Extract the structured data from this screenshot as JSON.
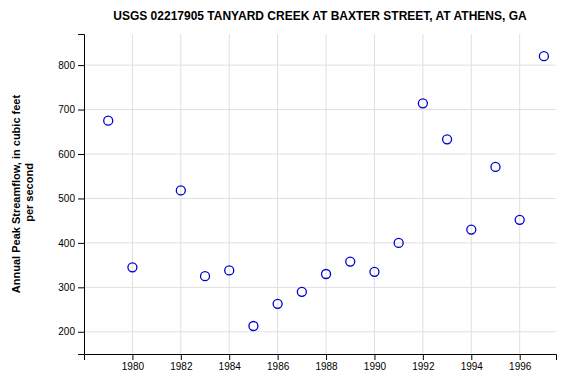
{
  "chart_data": {
    "type": "scatter",
    "title": "USGS 02217905 TANYARD CREEK AT BAXTER STREET, AT ATHENS, GA",
    "y_label": [
      "Annual Peak Streamflow, in cubic feet",
      " per second"
    ],
    "x": [
      1979,
      1980,
      1982,
      1983,
      1984,
      1985,
      1986,
      1987,
      1988,
      1989,
      1990,
      1991,
      1992,
      1993,
      1994,
      1995,
      1996,
      1997
    ],
    "values": [
      675,
      345,
      518,
      325,
      338,
      213,
      263,
      290,
      330,
      358,
      335,
      400,
      714,
      633,
      430,
      571,
      452,
      820
    ],
    "color": "#0000cc",
    "marker": "open-circle",
    "xlim": [
      1978.0,
      1997.5
    ],
    "ylim": [
      150,
      870
    ],
    "xticks": [
      1980,
      1982,
      1984,
      1986,
      1988,
      1990,
      1992,
      1994,
      1996
    ],
    "yticks": [
      200,
      300,
      400,
      500,
      600,
      700,
      800
    ],
    "grid": true
  }
}
